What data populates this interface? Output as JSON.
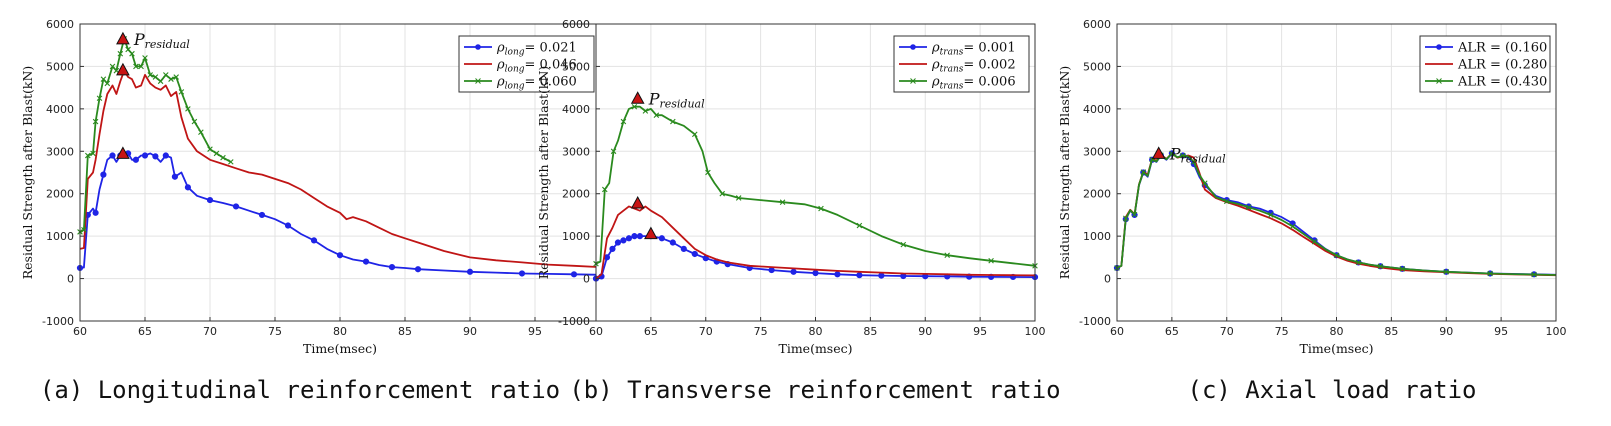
{
  "colors": {
    "blue": "#1f24e6",
    "red": "#c01515",
    "green": "#2a8a1e",
    "marker_fill": "#c81414"
  },
  "chart_data": [
    {
      "type": "line",
      "caption": "(a) Longitudinal reinforcement ratio",
      "xlabel": "Time(msec)",
      "ylabel": "Residual Strength after Blast(kN)",
      "xlim": [
        60,
        100
      ],
      "ylim": [
        -1000,
        6000
      ],
      "xticks": [
        60,
        65,
        70,
        75,
        80,
        85,
        90,
        95
      ],
      "yticks": [
        -1000,
        0,
        1000,
        2000,
        3000,
        4000,
        5000,
        6000
      ],
      "grid": true,
      "legend_position": "top-right",
      "legend_symbol": "ρ",
      "legend_sub": "long",
      "annotation": {
        "text": "P",
        "sub": "residual",
        "x": 63.3,
        "y": 5650
      },
      "residual_markers": [
        {
          "x": 63.3,
          "y": 5650
        },
        {
          "x": 63.3,
          "y": 4920
        },
        {
          "x": 63.3,
          "y": 2950
        }
      ],
      "series": [
        {
          "name": "= 0.021",
          "color": "blue",
          "marker": "circle",
          "x": [
            60,
            60.3,
            60.6,
            61.0,
            61.2,
            61.5,
            61.8,
            62.1,
            62.5,
            62.8,
            63.1,
            63.4,
            63.7,
            64.0,
            64.3,
            64.7,
            65.0,
            65.4,
            65.8,
            66.2,
            66.6,
            67.0,
            67.3,
            67.8,
            68.3,
            69.0,
            70.0,
            71.0,
            72.0,
            73.0,
            74.0,
            75.0,
            76.0,
            77.0,
            78.0,
            79.0,
            80.0,
            81.0,
            82.0,
            83.0,
            84.0,
            85.0,
            86.0,
            88.0,
            90.0,
            92.0,
            94.0,
            96.0,
            98.0,
            100.0
          ],
          "y": [
            250,
            260,
            1500,
            1650,
            1550,
            2100,
            2450,
            2800,
            2900,
            2750,
            2900,
            2850,
            2950,
            2800,
            2800,
            2900,
            2900,
            2950,
            2880,
            2750,
            2900,
            2850,
            2400,
            2500,
            2150,
            1950,
            1850,
            1780,
            1700,
            1600,
            1500,
            1400,
            1250,
            1050,
            900,
            700,
            550,
            450,
            400,
            320,
            270,
            250,
            220,
            190,
            160,
            140,
            120,
            110,
            100,
            90
          ]
        },
        {
          "name": "= 0.046",
          "color": "red",
          "marker": "none",
          "x": [
            60,
            60.3,
            60.6,
            61.0,
            61.2,
            61.5,
            61.8,
            62.1,
            62.5,
            62.8,
            63.1,
            63.4,
            63.7,
            64.0,
            64.3,
            64.7,
            65.0,
            65.4,
            65.8,
            66.2,
            66.6,
            67.0,
            67.4,
            67.8,
            68.3,
            69.0,
            70.0,
            71.0,
            72.0,
            73.0,
            74.0,
            75.0,
            76.0,
            77.0,
            78.0,
            79.0,
            80.0,
            80.5,
            81.0,
            82.0,
            83.0,
            84.0,
            85.0,
            86.0,
            88.0,
            90.0,
            92.0,
            94.0,
            96.0,
            98.0,
            100.0
          ],
          "y": [
            700,
            720,
            2350,
            2500,
            2800,
            3400,
            3950,
            4350,
            4550,
            4350,
            4650,
            4900,
            4750,
            4700,
            4500,
            4550,
            4800,
            4600,
            4500,
            4450,
            4550,
            4300,
            4400,
            3800,
            3300,
            3000,
            2800,
            2700,
            2600,
            2500,
            2450,
            2350,
            2250,
            2100,
            1900,
            1700,
            1550,
            1400,
            1450,
            1350,
            1200,
            1050,
            950,
            850,
            650,
            500,
            430,
            380,
            330,
            300,
            270
          ]
        },
        {
          "name": "= 0.060",
          "color": "green",
          "marker": "cross",
          "x": [
            60,
            60.3,
            60.6,
            61.0,
            61.2,
            61.5,
            61.8,
            62.1,
            62.5,
            62.8,
            63.1,
            63.4,
            63.7,
            64.0,
            64.3,
            64.7,
            65.0,
            65.4,
            65.8,
            66.2,
            66.6,
            67.0,
            67.4,
            67.8,
            68.3,
            68.8,
            69.3,
            70.0,
            70.5,
            71.0,
            71.6
          ],
          "y": [
            1100,
            1150,
            2900,
            2950,
            3700,
            4250,
            4700,
            4600,
            5000,
            4900,
            5300,
            5650,
            5400,
            5300,
            5000,
            5000,
            5200,
            4800,
            4750,
            4650,
            4800,
            4700,
            4750,
            4400,
            4000,
            3700,
            3450,
            3050,
            2950,
            2850,
            2750
          ]
        }
      ]
    },
    {
      "type": "line",
      "caption": "(b) Transverse reinforcement ratio",
      "xlabel": "Time(msec)",
      "ylabel": "Residual Strength after Blast(kN)",
      "xlim": [
        60,
        100
      ],
      "ylim": [
        -1000,
        6000
      ],
      "xticks": [
        60,
        65,
        70,
        75,
        80,
        85,
        90,
        95,
        100
      ],
      "yticks": [
        -1000,
        0,
        1000,
        2000,
        3000,
        4000,
        5000,
        6000
      ],
      "grid": true,
      "legend_position": "top-right",
      "legend_symbol": "ρ",
      "legend_sub": "trans",
      "annotation": {
        "text": "P",
        "sub": "residual",
        "x": 63.8,
        "y": 4250
      },
      "residual_markers": [
        {
          "x": 63.8,
          "y": 4250
        },
        {
          "x": 63.8,
          "y": 1780
        },
        {
          "x": 65.0,
          "y": 1060
        }
      ],
      "series": [
        {
          "name": "= 0.001",
          "color": "blue",
          "marker": "circle",
          "x": [
            60,
            60.5,
            61.0,
            61.5,
            62.0,
            62.5,
            63.0,
            63.5,
            64.0,
            65.0,
            66.0,
            67.0,
            68.0,
            69.0,
            70.0,
            71.0,
            72.0,
            74.0,
            76.0,
            78.0,
            80.0,
            82.0,
            84.0,
            86.0,
            88.0,
            90.0,
            92.0,
            94.0,
            96.0,
            98.0,
            100.0
          ],
          "y": [
            0,
            50,
            500,
            700,
            850,
            900,
            950,
            1000,
            1000,
            1000,
            950,
            850,
            700,
            580,
            480,
            400,
            340,
            250,
            200,
            160,
            130,
            100,
            80,
            70,
            60,
            55,
            50,
            45,
            40,
            38,
            35
          ]
        },
        {
          "name": "= 0.002",
          "color": "red",
          "marker": "none",
          "x": [
            60,
            60.5,
            61.0,
            61.5,
            62.0,
            62.5,
            63.0,
            63.5,
            64.0,
            64.5,
            65.0,
            66.0,
            67.0,
            68.0,
            69.0,
            70.0,
            71.0,
            72.0,
            74.0,
            76.0,
            78.0,
            80.0,
            82.0,
            84.0,
            86.0,
            88.0,
            90.0,
            92.0,
            94.0,
            96.0,
            98.0,
            100.0
          ],
          "y": [
            0,
            100,
            950,
            1200,
            1500,
            1600,
            1700,
            1650,
            1600,
            1700,
            1600,
            1450,
            1200,
            950,
            700,
            550,
            450,
            380,
            300,
            270,
            240,
            210,
            180,
            160,
            140,
            120,
            110,
            100,
            90,
            85,
            80,
            75
          ]
        },
        {
          "name": "= 0.006",
          "color": "green",
          "marker": "cross",
          "x": [
            60,
            60.4,
            60.8,
            61.2,
            61.6,
            62.0,
            62.5,
            63.0,
            63.5,
            64.0,
            64.5,
            65.0,
            65.5,
            66.0,
            67.0,
            68.0,
            69.0,
            69.7,
            70.2,
            70.8,
            71.5,
            72.3,
            73.0,
            75.0,
            77.0,
            79.0,
            80.5,
            82.0,
            84.0,
            86.0,
            88.0,
            90.0,
            92.0,
            94.0,
            96.0,
            98.0,
            100.0
          ],
          "y": [
            350,
            400,
            2100,
            2250,
            3000,
            3250,
            3700,
            4000,
            4050,
            4050,
            3950,
            4000,
            3850,
            3850,
            3700,
            3600,
            3400,
            3000,
            2500,
            2250,
            2000,
            1950,
            1900,
            1850,
            1800,
            1750,
            1650,
            1500,
            1250,
            1000,
            800,
            650,
            550,
            480,
            420,
            360,
            300
          ]
        }
      ]
    },
    {
      "type": "line",
      "caption": "(c) Axial load ratio",
      "xlabel": "Time(msec)",
      "ylabel": "Residual Strength after Blast(kN)",
      "xlim": [
        60,
        100
      ],
      "ylim": [
        -1000,
        6000
      ],
      "xticks": [
        60,
        65,
        70,
        75,
        80,
        85,
        90,
        95,
        100
      ],
      "yticks": [
        -1000,
        0,
        1000,
        2000,
        3000,
        4000,
        5000,
        6000
      ],
      "grid": true,
      "legend_position": "top-right",
      "legend_symbol": "",
      "legend_sub": "",
      "annotation": {
        "text": "P",
        "sub": "residual",
        "x": 63.8,
        "y": 2950
      },
      "residual_markers": [
        {
          "x": 63.8,
          "y": 2950
        }
      ],
      "series": [
        {
          "name": "ALR = (0.160",
          "color": "blue",
          "marker": "circle",
          "x": [
            60,
            60.4,
            60.8,
            61.2,
            61.6,
            62.0,
            62.4,
            62.8,
            63.2,
            63.6,
            64.0,
            64.5,
            65.0,
            65.5,
            66.0,
            66.5,
            67.0,
            67.5,
            68.0,
            69.0,
            70.0,
            71.0,
            72.0,
            73.0,
            74.0,
            75.0,
            76.0,
            77.0,
            78.0,
            79.0,
            80.0,
            81.0,
            82.0,
            83.0,
            84.0,
            85.0,
            86.0,
            88.0,
            90.0,
            92.0,
            94.0,
            96.0,
            98.0,
            100.0
          ],
          "y": [
            250,
            300,
            1400,
            1600,
            1500,
            2200,
            2500,
            2400,
            2800,
            2750,
            2900,
            2800,
            2950,
            2850,
            2900,
            2850,
            2700,
            2400,
            2200,
            1950,
            1850,
            1800,
            1700,
            1650,
            1550,
            1450,
            1300,
            1100,
            900,
            700,
            550,
            450,
            380,
            330,
            290,
            260,
            230,
            190,
            160,
            140,
            120,
            110,
            100,
            90
          ]
        },
        {
          "name": "ALR = (0.280",
          "color": "red",
          "marker": "none",
          "x": [
            60,
            60.4,
            60.8,
            61.2,
            61.6,
            62.0,
            62.4,
            62.8,
            63.2,
            63.6,
            64.0,
            64.5,
            65.0,
            65.5,
            66.0,
            66.5,
            67.0,
            67.5,
            68.0,
            69.0,
            70.0,
            71.0,
            72.0,
            73.0,
            74.0,
            75.0,
            76.0,
            77.0,
            78.0,
            79.0,
            80.0,
            81.0,
            82.0,
            83.0,
            84.0,
            85.0,
            86.0,
            88.0,
            90.0,
            92.0,
            94.0,
            96.0,
            98.0,
            100.0
          ],
          "y": [
            250,
            300,
            1450,
            1620,
            1520,
            2220,
            2520,
            2450,
            2820,
            2780,
            2920,
            2820,
            2950,
            2850,
            2880,
            2900,
            2850,
            2500,
            2100,
            1900,
            1800,
            1720,
            1620,
            1520,
            1420,
            1300,
            1150,
            980,
            820,
            650,
            520,
            420,
            350,
            300,
            260,
            230,
            200,
            170,
            150,
            130,
            110,
            100,
            90,
            80
          ]
        },
        {
          "name": "ALR = (0.430",
          "color": "green",
          "marker": "cross",
          "x": [
            60,
            60.4,
            60.8,
            61.2,
            61.6,
            62.0,
            62.4,
            62.8,
            63.2,
            63.6,
            64.0,
            64.5,
            65.0,
            65.5,
            66.0,
            66.5,
            67.0,
            67.5,
            68.0,
            69.0,
            70.0,
            71.0,
            72.0,
            73.0,
            74.0,
            75.0,
            76.0,
            77.0,
            78.0,
            79.0,
            80.0,
            81.0,
            82.0,
            83.0,
            84.0,
            85.0,
            86.0,
            88.0,
            90.0,
            92.0,
            94.0,
            96.0,
            98.0,
            100.0
          ],
          "y": [
            250,
            300,
            1420,
            1610,
            1510,
            2210,
            2510,
            2420,
            2810,
            2760,
            2910,
            2810,
            2950,
            2860,
            2900,
            2880,
            2750,
            2450,
            2250,
            1920,
            1820,
            1760,
            1680,
            1600,
            1500,
            1380,
            1230,
            1050,
            870,
            690,
            550,
            450,
            380,
            330,
            290,
            260,
            230,
            190,
            160,
            140,
            120,
            105,
            95,
            85
          ]
        }
      ]
    }
  ]
}
